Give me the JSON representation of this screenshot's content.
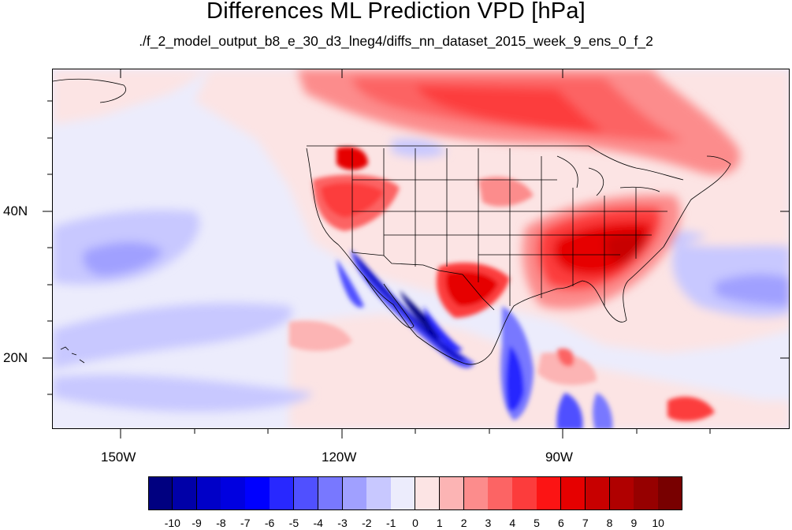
{
  "title": "Differences ML Prediction VPD [hPa]",
  "subtitle": "./f_2_model_output_b8_e_30_d3_lneg4/diffs_nn_dataset_2015_week_9_ens_0_f_2",
  "map": {
    "projection": "cylindrical equidistant",
    "lon_range": [
      -160,
      -60
    ],
    "lat_range": [
      10,
      59
    ],
    "lon_ticks": [
      {
        "label": "150W",
        "lon": -150
      },
      {
        "label": "120W",
        "lon": -120
      },
      {
        "label": "90W",
        "lon": -90
      }
    ],
    "lat_ticks": [
      {
        "label": "40N",
        "lat": 40
      },
      {
        "label": "20N",
        "lat": 20
      }
    ],
    "features": [
      "coastlines",
      "US state boundaries",
      "Canada-US border",
      "Mexico border"
    ]
  },
  "colorbar": {
    "levels": [
      "-10",
      "-9",
      "-8",
      "-7",
      "-6",
      "-5",
      "-4",
      "-3",
      "-2",
      "-1",
      "0",
      "1",
      "2",
      "3",
      "4",
      "5",
      "6",
      "7",
      "8",
      "9",
      "10"
    ],
    "colors": [
      "#000080",
      "#0000a8",
      "#0000c8",
      "#0000e0",
      "#0000ff",
      "#2828ff",
      "#5050ff",
      "#7878ff",
      "#a0a0ff",
      "#c8c8ff",
      "#ececfc",
      "#fce4e4",
      "#fcb4b4",
      "#fc8c8c",
      "#fc6464",
      "#fc3c3c",
      "#fc1414",
      "#e60000",
      "#c80000",
      "#b00000",
      "#960000",
      "#780000"
    ]
  }
}
